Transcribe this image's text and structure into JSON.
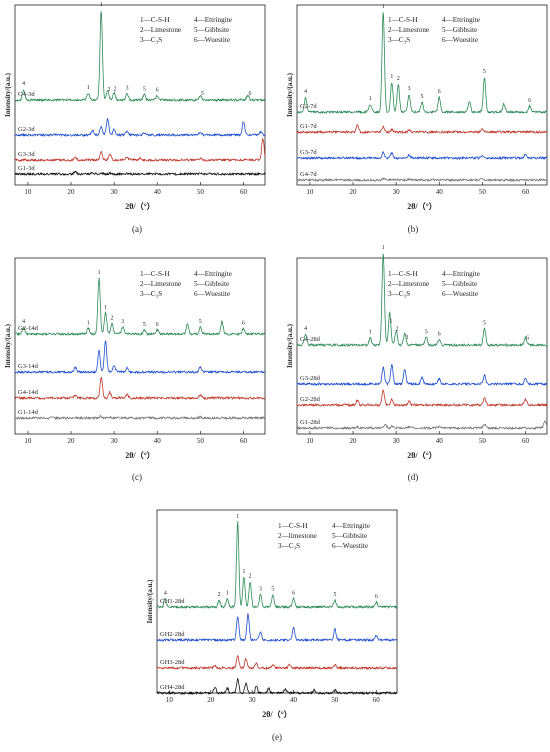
{
  "chart_data": [
    {
      "id": "a",
      "panel_label": "(a)",
      "type": "line",
      "xlabel": "2θ/（°）",
      "ylabel": "Intensity/(a.u.)",
      "xlim": [
        7,
        65
      ],
      "xticks": [
        "10",
        "20",
        "30",
        "40",
        "50",
        "60"
      ],
      "legend": [
        "1—C-S-H",
        "2—Limestone",
        "3—C₃S",
        "4—Ettringite",
        "5—Gibbsite",
        "6—Wuestite"
      ],
      "series": [
        {
          "name": "G4-3d",
          "color": "#2e8b57",
          "peaks": [
            [
              9,
              0.12
            ],
            [
              24,
              0.08
            ],
            [
              27,
              1.0
            ],
            [
              28.5,
              0.1
            ],
            [
              30,
              0.08
            ],
            [
              33,
              0.07
            ],
            [
              37,
              0.06
            ],
            [
              40,
              0.05
            ],
            [
              50,
              0.05
            ],
            [
              61,
              0.05
            ]
          ],
          "peak_labels": [
            [
              9,
              "4"
            ],
            [
              24,
              "1"
            ],
            [
              27,
              "1"
            ],
            [
              28.8,
              "2"
            ],
            [
              30.2,
              "2"
            ],
            [
              33,
              "3"
            ],
            [
              37,
              "5"
            ],
            [
              40,
              "6"
            ],
            [
              50.5,
              "5"
            ],
            [
              61.5,
              "6"
            ]
          ]
        },
        {
          "name": "G2-3d",
          "color": "#1f4fd1",
          "peaks": [
            [
              25,
              0.15
            ],
            [
              27,
              0.3
            ],
            [
              28.5,
              0.55
            ],
            [
              30,
              0.2
            ],
            [
              33,
              0.14
            ],
            [
              37,
              0.08
            ],
            [
              50,
              0.08
            ],
            [
              60,
              0.45
            ],
            [
              64,
              0.1
            ]
          ]
        },
        {
          "name": "G3-3d",
          "color": "#c0392b",
          "peaks": [
            [
              21,
              0.1
            ],
            [
              27,
              0.35
            ],
            [
              29,
              0.25
            ],
            [
              33,
              0.1
            ],
            [
              36,
              0.08
            ],
            [
              50,
              0.08
            ],
            [
              64.5,
              0.9
            ]
          ]
        },
        {
          "name": "G1-3d",
          "color": "#111111",
          "peaks": [
            [
              21,
              0.12
            ],
            [
              25,
              0.08
            ],
            [
              27,
              0.1
            ],
            [
              29,
              0.06
            ],
            [
              33,
              0.05
            ],
            [
              50,
              0.04
            ]
          ]
        }
      ]
    },
    {
      "id": "b",
      "panel_label": "(b)",
      "type": "line",
      "xlabel": "2θ/（°）",
      "ylabel": "Intensity/(a.u.)",
      "xlim": [
        7,
        65
      ],
      "xticks": [
        "10",
        "20",
        "30",
        "40",
        "50",
        "60"
      ],
      "legend": [
        "1—C-S-H",
        "2—Limestone",
        "3—C₃S",
        "4—Ettringite",
        "5—Gibbsite",
        "6—Wuestite"
      ],
      "series": [
        {
          "name": "G2-7d",
          "color": "#2e8b57",
          "peaks": [
            [
              9,
              0.15
            ],
            [
              24,
              0.08
            ],
            [
              27,
              1.0
            ],
            [
              29,
              0.3
            ],
            [
              30.5,
              0.28
            ],
            [
              33,
              0.18
            ],
            [
              36,
              0.1
            ],
            [
              40,
              0.15
            ],
            [
              47,
              0.1
            ],
            [
              50.5,
              0.35
            ],
            [
              55,
              0.08
            ],
            [
              61,
              0.06
            ]
          ],
          "peak_labels": [
            [
              9,
              "4"
            ],
            [
              24,
              "1"
            ],
            [
              27,
              "1"
            ],
            [
              29,
              "1"
            ],
            [
              30.5,
              "2"
            ],
            [
              33,
              "3"
            ],
            [
              36,
              "5"
            ],
            [
              40,
              "6"
            ],
            [
              50.5,
              "5"
            ],
            [
              61,
              "6"
            ]
          ]
        },
        {
          "name": "G1-7d",
          "color": "#c0392b",
          "peaks": [
            [
              21,
              0.25
            ],
            [
              27,
              0.2
            ],
            [
              29,
              0.1
            ],
            [
              33,
              0.08
            ],
            [
              50,
              0.1
            ]
          ]
        },
        {
          "name": "G3-7d",
          "color": "#1f4fd1",
          "peaks": [
            [
              27,
              0.25
            ],
            [
              29,
              0.2
            ],
            [
              33,
              0.12
            ],
            [
              50,
              0.1
            ],
            [
              60,
              0.15
            ]
          ]
        },
        {
          "name": "G4-7d",
          "color": "#777777",
          "peaks": [
            [
              27,
              0.12
            ],
            [
              29,
              0.08
            ],
            [
              33,
              0.06
            ],
            [
              50,
              0.06
            ]
          ]
        }
      ]
    },
    {
      "id": "c",
      "panel_label": "(c)",
      "type": "line",
      "xlabel": "2θ/（°）",
      "ylabel": "Intensity/(a.u.)",
      "xlim": [
        7,
        65
      ],
      "xticks": [
        "10",
        "20",
        "30",
        "40",
        "50",
        "60"
      ],
      "legend": [
        "1—C-S-H",
        "2—Limestone",
        "3—C₃S",
        "4—Ettringite",
        "5—Gibbsite",
        "6—Wuestite"
      ],
      "series": [
        {
          "name": "G2-14d",
          "color": "#2e8b57",
          "peaks": [
            [
              9,
              0.1
            ],
            [
              24,
              0.08
            ],
            [
              26.5,
              0.8
            ],
            [
              28,
              0.3
            ],
            [
              29.5,
              0.15
            ],
            [
              32,
              0.1
            ],
            [
              37,
              0.06
            ],
            [
              40,
              0.06
            ],
            [
              47,
              0.15
            ],
            [
              50,
              0.1
            ],
            [
              55,
              0.18
            ],
            [
              60,
              0.08
            ]
          ],
          "peak_labels": [
            [
              9,
              "4"
            ],
            [
              24,
              "1"
            ],
            [
              26.5,
              "1"
            ],
            [
              28,
              "1"
            ],
            [
              29.5,
              "2"
            ],
            [
              32,
              "3"
            ],
            [
              37,
              "5"
            ],
            [
              40,
              "6"
            ],
            [
              50,
              "5"
            ],
            [
              60,
              "6"
            ]
          ]
        },
        {
          "name": "G3-14d",
          "color": "#1f4fd1",
          "peaks": [
            [
              21,
              0.1
            ],
            [
              26.5,
              0.5
            ],
            [
              28,
              0.75
            ],
            [
              30,
              0.15
            ],
            [
              33,
              0.1
            ],
            [
              50,
              0.12
            ]
          ]
        },
        {
          "name": "G4-14d",
          "color": "#c0392b",
          "peaks": [
            [
              21,
              0.08
            ],
            [
              27,
              0.55
            ],
            [
              29,
              0.15
            ],
            [
              33,
              0.08
            ],
            [
              50,
              0.08
            ]
          ]
        },
        {
          "name": "G1-14d",
          "color": "#777777",
          "peaks": [
            [
              21,
              0.06
            ],
            [
              27,
              0.1
            ],
            [
              29,
              0.06
            ],
            [
              50,
              0.05
            ]
          ]
        }
      ]
    },
    {
      "id": "d",
      "panel_label": "(d)",
      "type": "line",
      "xlabel": "2θ/（°）",
      "ylabel": "Intensity/(a.u.)",
      "xlim": [
        7,
        65
      ],
      "xticks": [
        "10",
        "20",
        "30",
        "40",
        "50",
        "60"
      ],
      "legend": [
        "1—C-S-H",
        "2—Limestone",
        "3—C₃S",
        "4—Ettringite",
        "5—Gibbsite",
        "6—Wuestite"
      ],
      "series": [
        {
          "name": "G4-28d",
          "color": "#2e8b57",
          "peaks": [
            [
              9,
              0.12
            ],
            [
              24,
              0.08
            ],
            [
              27,
              1.0
            ],
            [
              28.5,
              0.35
            ],
            [
              30,
              0.15
            ],
            [
              32,
              0.12
            ],
            [
              37,
              0.08
            ],
            [
              40,
              0.06
            ],
            [
              50.5,
              0.18
            ],
            [
              60,
              0.08
            ]
          ],
          "peak_labels": [
            [
              9,
              "4"
            ],
            [
              24,
              "1"
            ],
            [
              27,
              "1"
            ],
            [
              28.8,
              "1"
            ],
            [
              30.2,
              "2"
            ],
            [
              32.5,
              "3"
            ],
            [
              37,
              "5"
            ],
            [
              40,
              "6"
            ],
            [
              50.5,
              "5"
            ],
            [
              60.5,
              "6"
            ]
          ]
        },
        {
          "name": "G3-28d",
          "color": "#1f4fd1",
          "peaks": [
            [
              27,
              0.4
            ],
            [
              29,
              0.45
            ],
            [
              32,
              0.35
            ],
            [
              36,
              0.15
            ],
            [
              40,
              0.12
            ],
            [
              50.5,
              0.2
            ],
            [
              60,
              0.12
            ]
          ]
        },
        {
          "name": "G2-28d",
          "color": "#c0392b",
          "peaks": [
            [
              21,
              0.12
            ],
            [
              27,
              0.4
            ],
            [
              29,
              0.15
            ],
            [
              33,
              0.1
            ],
            [
              50.5,
              0.2
            ],
            [
              60,
              0.15
            ]
          ]
        },
        {
          "name": "G1-28d",
          "color": "#777777",
          "peaks": [
            [
              21,
              0.08
            ],
            [
              27.5,
              0.2
            ],
            [
              29,
              0.1
            ],
            [
              33,
              0.08
            ],
            [
              40,
              0.06
            ],
            [
              50.5,
              0.2
            ],
            [
              64.5,
              0.4
            ]
          ]
        }
      ]
    },
    {
      "id": "e",
      "panel_label": "(e)",
      "type": "line",
      "xlabel": "2θ/（°）",
      "ylabel": "Intensity/(a.u.)",
      "xlim": [
        7,
        65
      ],
      "xticks": [
        "10",
        "20",
        "30",
        "40",
        "50",
        "60"
      ],
      "legend": [
        "1—C-S-H",
        "2—limestone",
        "3—C₃S",
        "4—Ettringite",
        "5—Gibbsite",
        "6—Wuestite"
      ],
      "series": [
        {
          "name": "GH1-28d",
          "color": "#2e8b57",
          "peaks": [
            [
              9,
              0.1
            ],
            [
              22,
              0.08
            ],
            [
              24,
              0.1
            ],
            [
              26.5,
              1.0
            ],
            [
              28,
              0.35
            ],
            [
              29.5,
              0.3
            ],
            [
              32,
              0.15
            ],
            [
              35,
              0.15
            ],
            [
              40,
              0.1
            ],
            [
              50,
              0.08
            ],
            [
              60,
              0.06
            ]
          ],
          "peak_labels": [
            [
              9,
              "4"
            ],
            [
              22,
              "2"
            ],
            [
              24,
              "1"
            ],
            [
              26.5,
              "1"
            ],
            [
              28,
              "1"
            ],
            [
              29.5,
              "2"
            ],
            [
              32,
              "3"
            ],
            [
              35,
              "5"
            ],
            [
              40,
              "6"
            ],
            [
              50,
              "5"
            ],
            [
              60,
              "6"
            ]
          ]
        },
        {
          "name": "GH2-28d",
          "color": "#1f4fd1",
          "peaks": [
            [
              26.5,
              0.55
            ],
            [
              29,
              0.6
            ],
            [
              32,
              0.2
            ],
            [
              40,
              0.3
            ],
            [
              50,
              0.25
            ],
            [
              60,
              0.1
            ]
          ]
        },
        {
          "name": "GH3-28d",
          "color": "#c0392b",
          "peaks": [
            [
              21,
              0.08
            ],
            [
              26.5,
              0.35
            ],
            [
              28.5,
              0.25
            ],
            [
              31,
              0.15
            ],
            [
              35,
              0.1
            ],
            [
              39,
              0.1
            ],
            [
              50,
              0.08
            ]
          ]
        },
        {
          "name": "GH4-28d",
          "color": "#111111",
          "peaks": [
            [
              21,
              0.2
            ],
            [
              24,
              0.15
            ],
            [
              26.5,
              0.45
            ],
            [
              28.5,
              0.3
            ],
            [
              31,
              0.2
            ],
            [
              34,
              0.15
            ],
            [
              38,
              0.12
            ],
            [
              45,
              0.1
            ],
            [
              50,
              0.1
            ]
          ]
        }
      ]
    }
  ]
}
